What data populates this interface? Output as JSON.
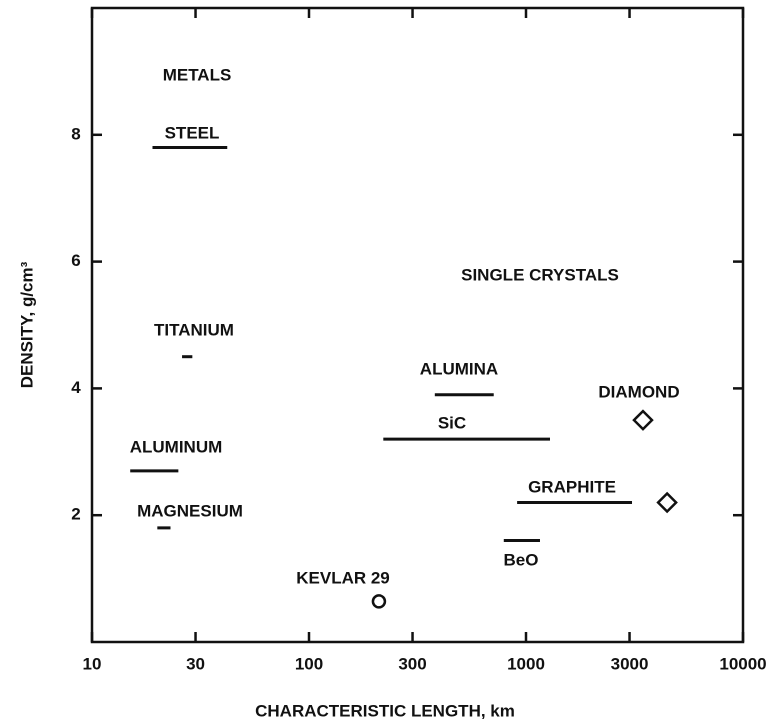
{
  "chart_data": {
    "type": "range",
    "xlabel": "CHARACTERISTIC LENGTH, km",
    "ylabel": "DENSITY, g/cm³",
    "xscale": "log",
    "xlim": [
      10,
      10000
    ],
    "xticks": [
      10,
      30,
      100,
      300,
      1000,
      3000,
      10000
    ],
    "ylim": [
      0,
      10
    ],
    "yticks": [
      2,
      4,
      6,
      8
    ],
    "color": "#111111",
    "annotations": [
      "METALS",
      "SINGLE CRYSTALS"
    ],
    "ranges": [
      {
        "name": "STEEL",
        "x": [
          19,
          42
        ],
        "value": 7.8
      },
      {
        "name": "TITANIUM",
        "x": [
          26,
          29
        ],
        "value": 4.5
      },
      {
        "name": "ALUMINUM",
        "x": [
          15,
          25
        ],
        "value": 2.7
      },
      {
        "name": "MAGNESIUM",
        "x": [
          20,
          23
        ],
        "value": 1.8
      },
      {
        "name": "ALUMINA",
        "x": [
          380,
          710
        ],
        "value": 3.9
      },
      {
        "name": "SiC",
        "x": [
          220,
          1290
        ],
        "value": 3.2
      },
      {
        "name": "GRAPHITE",
        "x": [
          910,
          3080
        ],
        "value": 2.2
      },
      {
        "name": "BeO",
        "x": [
          790,
          1160
        ],
        "value": 1.6
      }
    ],
    "points": [
      {
        "name": "DIAMOND",
        "marker": "diamond",
        "x": 3460,
        "value": 3.5
      },
      {
        "marker": "diamond",
        "x": 4470,
        "value": 2.2
      },
      {
        "name": "KEVLAR 29",
        "marker": "circle",
        "x": 210,
        "value": 0.64
      }
    ]
  }
}
